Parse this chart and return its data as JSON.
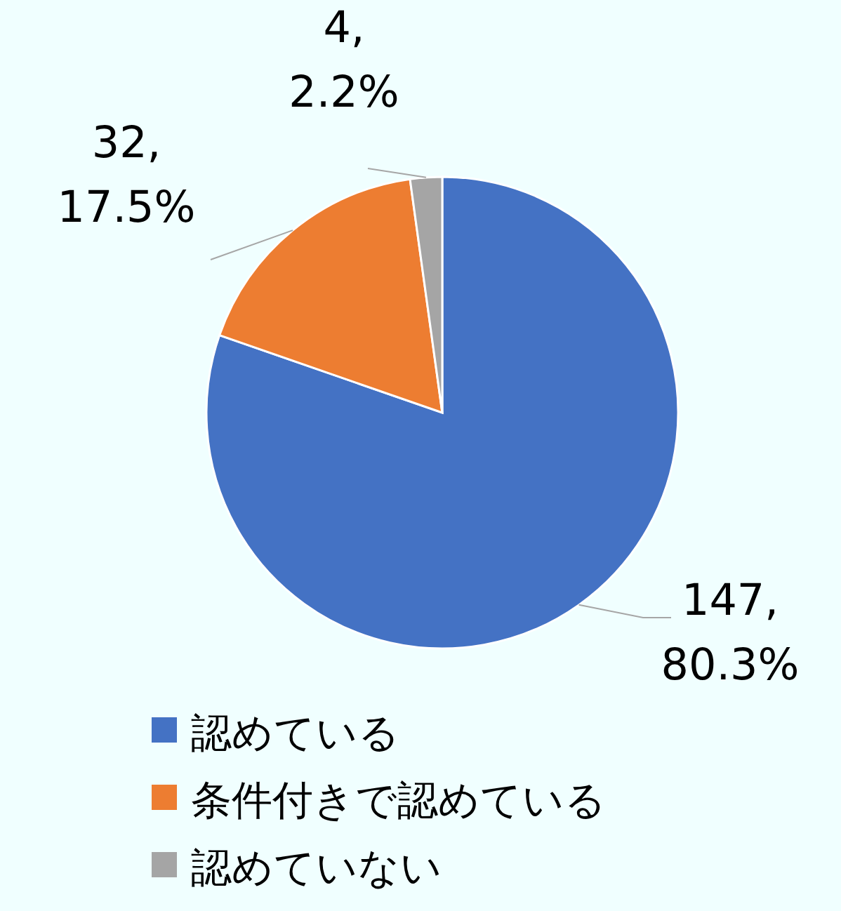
{
  "chart_data": {
    "type": "pie",
    "categories": [
      "認めている",
      "条件付きで認めている",
      "認めていない"
    ],
    "values": [
      147,
      32,
      4
    ],
    "colors": [
      "#4472c4",
      "#ed7d31",
      "#a5a5a5"
    ],
    "value_labels": [
      "147, 80.3%",
      "32, 17.5%",
      "4, 2.2%"
    ],
    "legend": "bottom"
  }
}
